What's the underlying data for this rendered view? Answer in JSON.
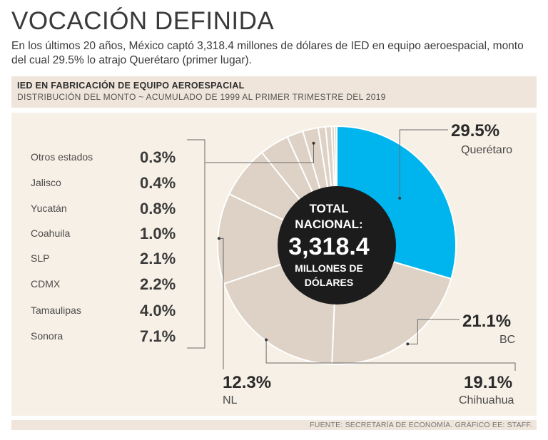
{
  "header": {
    "title": "VOCACIÓN DEFINIDA",
    "subtitle": "En los últimos 20 años, México captó 3,318.4 millones de dólares de IED en equipo aeroespacial, monto del cual 29.5% lo atrajo Querétaro (primer lugar)."
  },
  "banner": {
    "heading": "IED EN FABRICACIÓN DE EQUIPO AEROESPACIAL",
    "subheading": "DISTRIBUCIÓN DEL MONTO ~ ACUMULADO DE 1999 AL PRIMER TRIMESTRE DEL 2019"
  },
  "center": {
    "line1": "TOTAL",
    "line2": "NACIONAL:",
    "value": "3,318.4",
    "line3": "MILLONES DE",
    "line4": "DÓLARES"
  },
  "footer": {
    "source": "FUENTE: SECRETARÍA DE ECONOMÍA. GRÁFICO EE: STAFF."
  },
  "colors": {
    "highlight": "#00b5ee",
    "slice": "#ddd2c5",
    "edge": "#ffffff",
    "center": "#1c1c1c",
    "panel": "#f7f0e6"
  },
  "chart_data": {
    "type": "pie",
    "title": "IED EN FABRICACIÓN DE EQUIPO AEROESPACIAL",
    "total": 3318.4,
    "units": "millones de dólares",
    "slices": [
      {
        "name": "Querétaro",
        "value": 29.5,
        "label": "29.5%",
        "highlight": true
      },
      {
        "name": "BC",
        "value": 21.1,
        "label": "21.1%"
      },
      {
        "name": "Chihuahua",
        "value": 19.1,
        "label": "19.1%"
      },
      {
        "name": "NL",
        "value": 12.3,
        "label": "12.3%"
      },
      {
        "name": "Sonora",
        "value": 7.1,
        "label": "7.1%"
      },
      {
        "name": "Tamaulipas",
        "value": 4.0,
        "label": "4.0%"
      },
      {
        "name": "CDMX",
        "value": 2.2,
        "label": "2.2%"
      },
      {
        "name": "SLP",
        "value": 2.1,
        "label": "2.1%"
      },
      {
        "name": "Coahuila",
        "value": 1.0,
        "label": "1.0%"
      },
      {
        "name": "Yucatán",
        "value": 0.8,
        "label": "0.8%"
      },
      {
        "name": "Jalisco",
        "value": 0.4,
        "label": "0.4%"
      },
      {
        "name": "Otros estados",
        "value": 0.3,
        "label": "0.3%"
      }
    ]
  }
}
